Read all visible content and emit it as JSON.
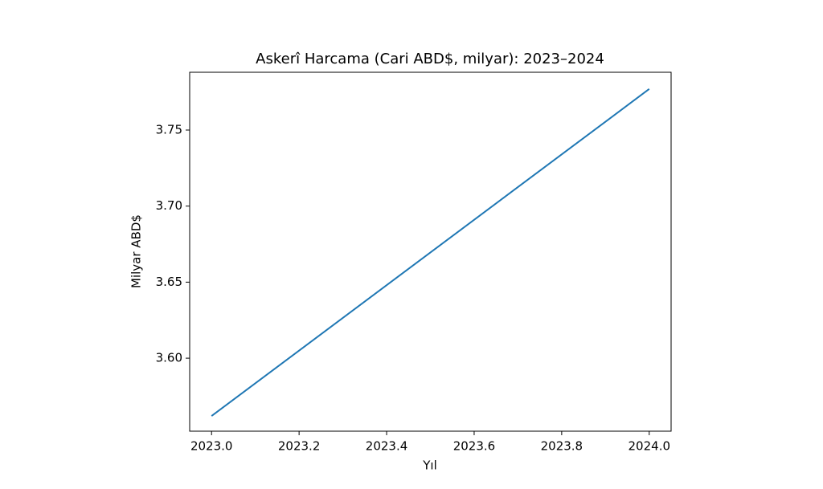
{
  "chart_data": {
    "type": "line",
    "title": "Askerî Harcama (Cari ABD$, milyar): 2023–2024",
    "x_label": "Yıl",
    "y_label": "Milyar ABD$",
    "x": [
      2023,
      2024
    ],
    "values": [
      3.562,
      3.777
    ],
    "color": "#1f77b4",
    "xlim": [
      2022.95,
      2024.05
    ],
    "xticks": [
      {
        "value": 2023,
        "label": "2023.0"
      },
      {
        "value": 2023.2,
        "label": "2023.2"
      },
      {
        "value": 2023.4,
        "label": "2023.4"
      },
      {
        "value": 2023.6,
        "label": "2023.6"
      },
      {
        "value": 2023.8,
        "label": "2023.8"
      },
      {
        "value": 2024,
        "label": "2024.0"
      }
    ],
    "ylim": [
      3.552,
      3.788
    ],
    "yticks": [
      {
        "value": 3.6,
        "label": "3.60"
      },
      3.65,
      {
        "value": 3.7,
        "label": "3.70"
      },
      3.75
    ],
    "grid": false
  }
}
